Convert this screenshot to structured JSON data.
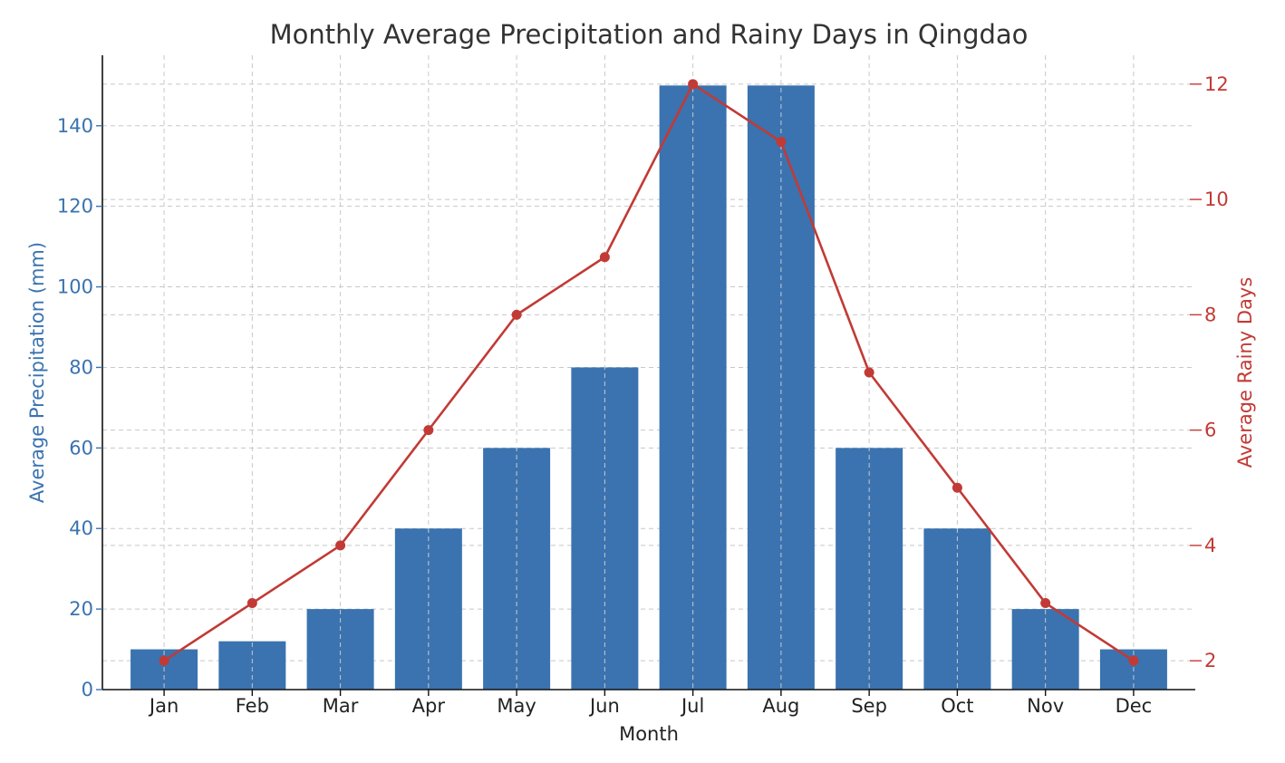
{
  "chart_data": {
    "type": "bar",
    "title": "Monthly Average Precipitation and Rainy Days in Qingdao",
    "xlabel": "Month",
    "categories": [
      "Jan",
      "Feb",
      "Mar",
      "Apr",
      "May",
      "Jun",
      "Jul",
      "Aug",
      "Sep",
      "Oct",
      "Nov",
      "Dec"
    ],
    "series": [
      {
        "name": "Average Precipitation (mm)",
        "type": "bar",
        "axis": "left",
        "color": "#3a73b0",
        "values": [
          10,
          12,
          20,
          40,
          60,
          80,
          150,
          150,
          60,
          40,
          20,
          10
        ]
      },
      {
        "name": "Average Rainy Days",
        "type": "line",
        "axis": "right",
        "color": "#c23a35",
        "values": [
          2,
          3,
          4,
          6,
          8,
          9,
          12,
          11,
          7,
          5,
          3,
          2
        ]
      }
    ],
    "y_left": {
      "label": "Average Precipitation (mm)",
      "color": "#3a73b0",
      "ylim": [
        0,
        157.5
      ],
      "ticks": [
        0,
        20,
        40,
        60,
        80,
        100,
        120,
        140
      ]
    },
    "y_right": {
      "label": "Average Rainy Days",
      "color": "#c23a35",
      "ylim": [
        1.5,
        12.5
      ],
      "ticks": [
        2,
        4,
        6,
        8,
        10,
        12
      ]
    },
    "grid": true,
    "legend": "none"
  }
}
